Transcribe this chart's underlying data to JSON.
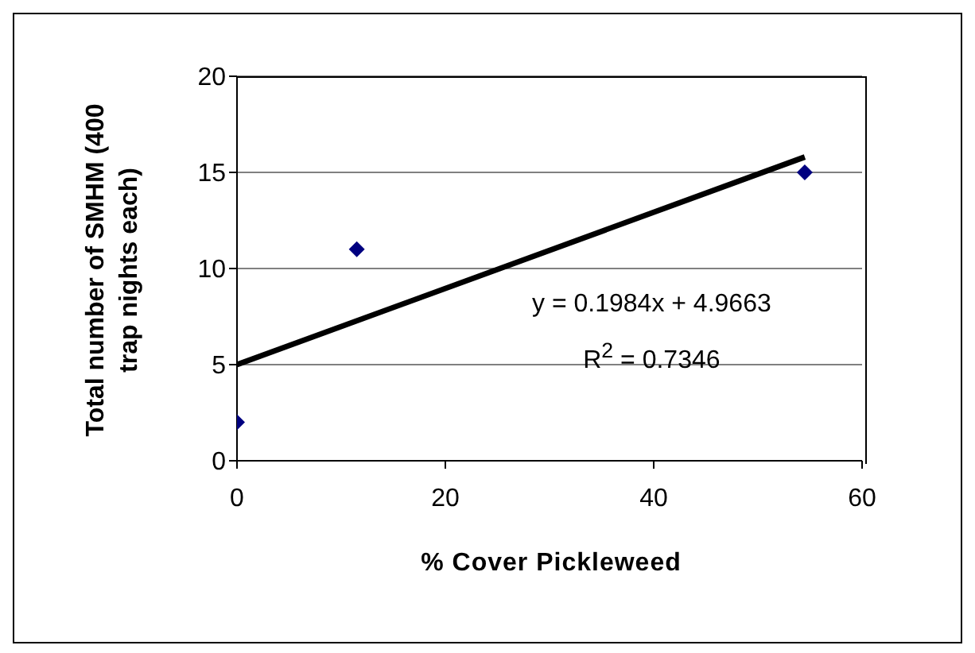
{
  "chart_data": {
    "type": "scatter",
    "xlabel": "% Cover Pickleweed",
    "ylabel": "Total number of SMHM (400 trap nights each)",
    "xlim": [
      0,
      60
    ],
    "xticks": [
      0,
      20,
      40,
      60
    ],
    "ylim": [
      0,
      20
    ],
    "yticks": [
      0,
      5,
      10,
      15,
      20
    ],
    "grid": "y",
    "legend": false,
    "series": [
      {
        "color": "#000080",
        "marker": "diamond",
        "x": [
          0,
          11.5,
          54.5
        ],
        "values": [
          2,
          11,
          15
        ]
      },
      {
        "type": "line",
        "color": "#000000",
        "x": [
          0,
          54.5
        ],
        "values": [
          5,
          15.8
        ]
      }
    ],
    "annotations": [
      "y = 0.1984x + 4.9663",
      "R$^{2}$ = 0.7346"
    ]
  }
}
